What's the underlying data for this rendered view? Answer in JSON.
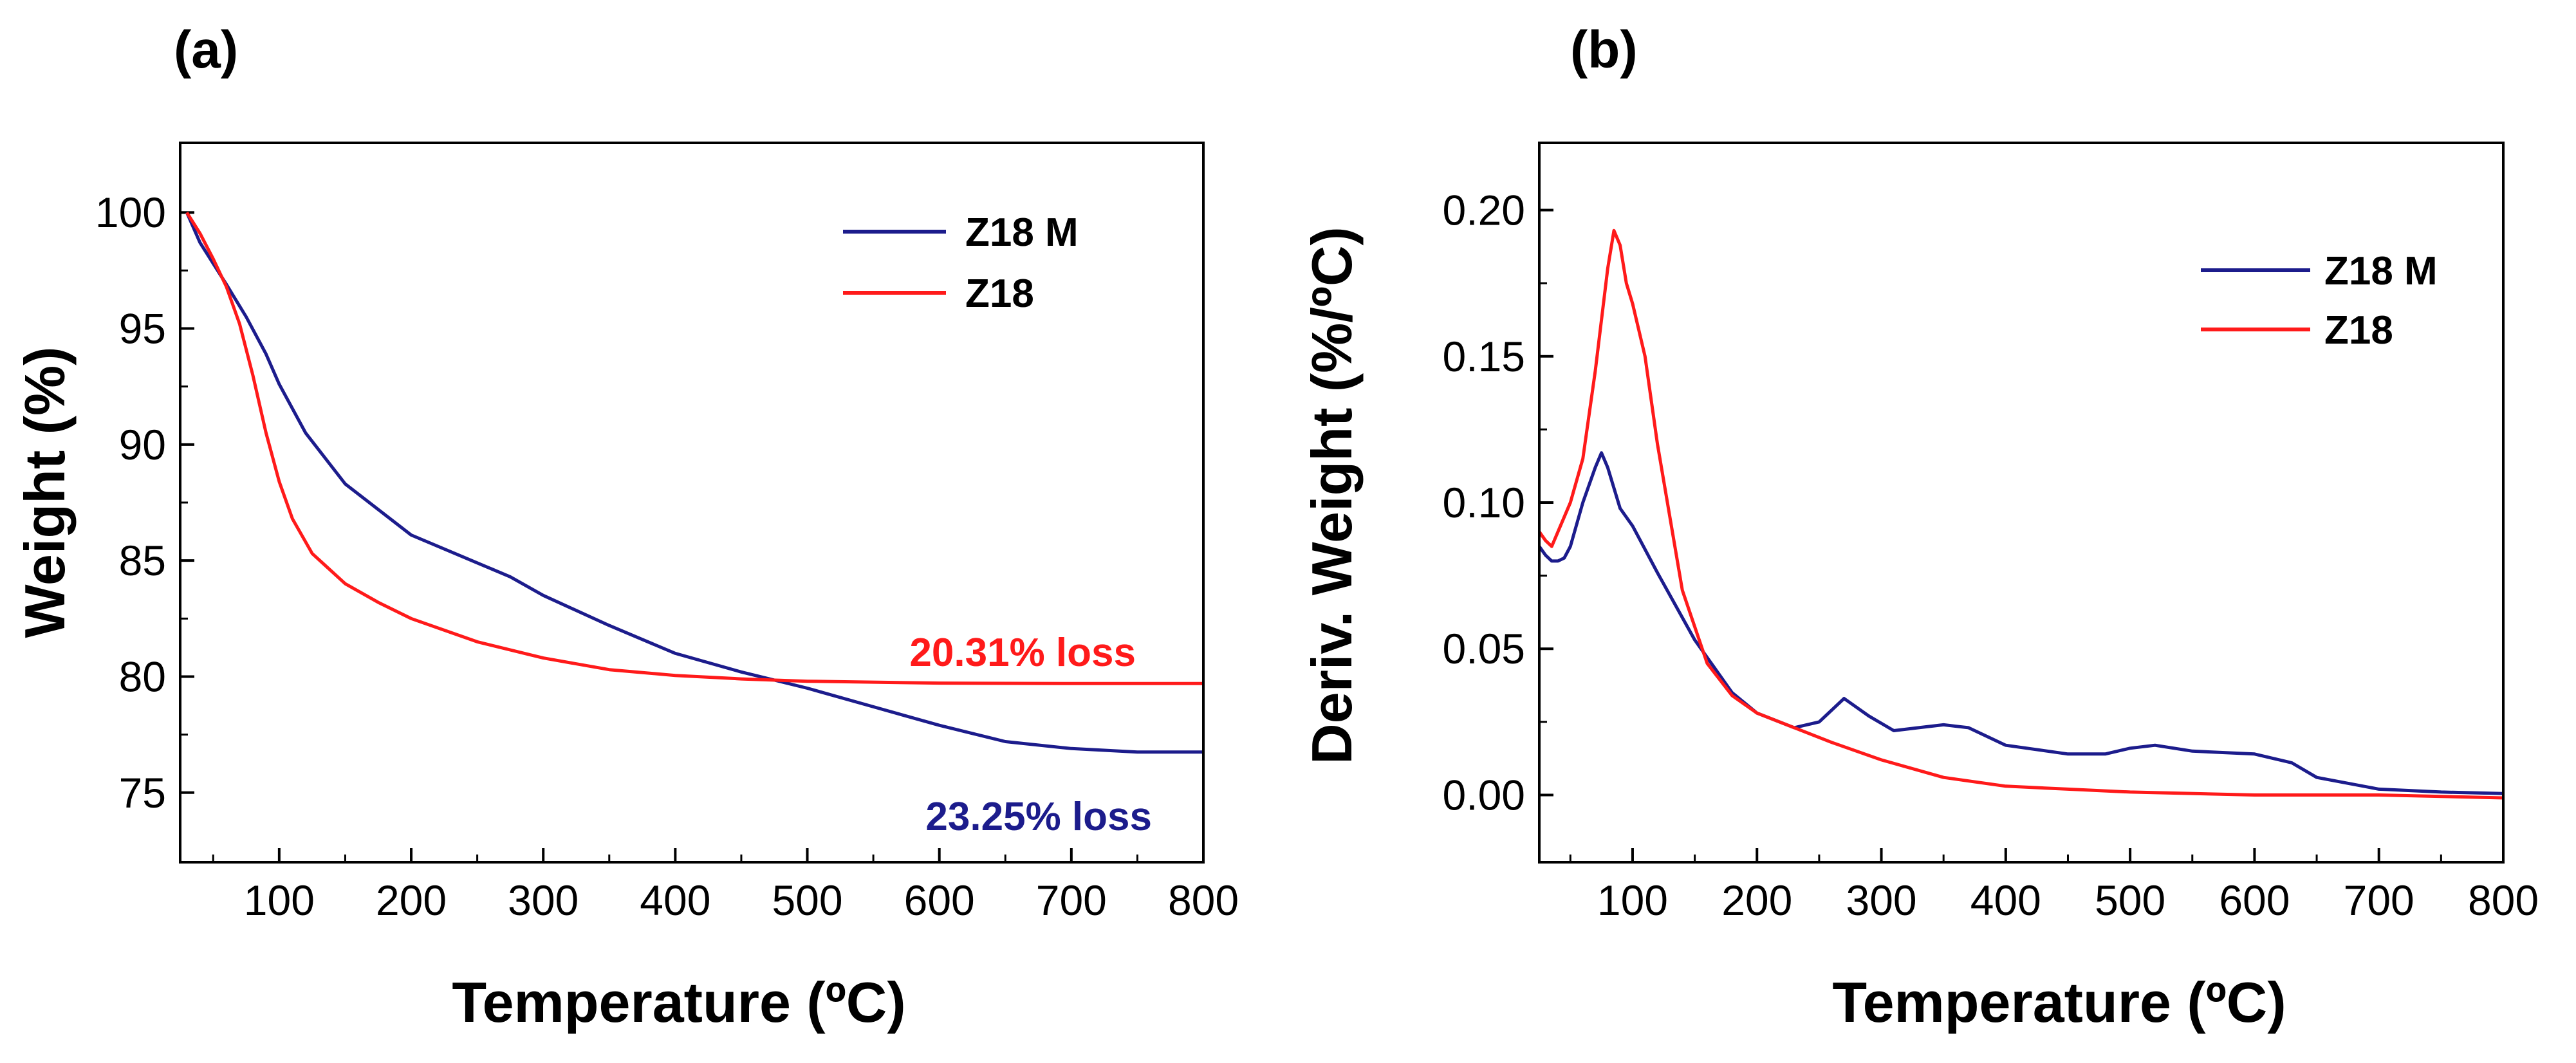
{
  "chart_data": [
    {
      "panel_label": "(a)",
      "type": "line",
      "xlabel": "Temperature (ºC)",
      "ylabel": "Weight (%)",
      "xlim": [
        25,
        800
      ],
      "ylim": [
        72,
        103
      ],
      "xticks": [
        100,
        200,
        300,
        400,
        500,
        600,
        700,
        800
      ],
      "xtick_labels": [
        "100",
        "200",
        "300",
        "400",
        "500",
        "600",
        "700",
        "800"
      ],
      "yticks": [
        75,
        80,
        85,
        90,
        95,
        100
      ],
      "ytick_labels": [
        "75",
        "80",
        "85",
        "90",
        "95",
        "100"
      ],
      "legend": {
        "position": "top-right",
        "entries": [
          "Z18 M",
          "Z18"
        ]
      },
      "series": [
        {
          "name": "Z18 M",
          "color": "#1c1c8c",
          "x": [
            30,
            40,
            50,
            60,
            75,
            90,
            100,
            120,
            150,
            200,
            250,
            275,
            300,
            350,
            400,
            450,
            500,
            550,
            600,
            650,
            700,
            750,
            800
          ],
          "y": [
            100,
            98.7,
            97.8,
            96.9,
            95.5,
            93.9,
            92.6,
            90.5,
            88.3,
            86.1,
            84.9,
            84.3,
            83.5,
            82.2,
            81.0,
            80.2,
            79.5,
            78.7,
            77.9,
            77.2,
            76.9,
            76.75,
            76.75
          ]
        },
        {
          "name": "Z18",
          "color": "#ff1a1a",
          "x": [
            30,
            40,
            50,
            60,
            70,
            80,
            90,
            100,
            110,
            125,
            150,
            175,
            200,
            250,
            300,
            350,
            400,
            450,
            500,
            600,
            700,
            800
          ],
          "y": [
            100,
            99.1,
            98.0,
            96.8,
            95.2,
            93.0,
            90.5,
            88.4,
            86.8,
            85.3,
            84.0,
            83.2,
            82.5,
            81.5,
            80.8,
            80.3,
            80.05,
            79.9,
            79.8,
            79.72,
            79.7,
            79.7
          ]
        }
      ],
      "annotations": [
        {
          "text": "20.31% loss",
          "color": "#ff1a1a",
          "x": 800,
          "y": 81.3
        },
        {
          "text": "23.25% loss",
          "color": "#1c1c8c",
          "x": 800,
          "y": 74.9
        }
      ]
    },
    {
      "panel_label": "(b)",
      "type": "line",
      "xlabel": "Temperature (ºC)",
      "ylabel": "Deriv. Weight (%/ºC)",
      "xlim": [
        25,
        800
      ],
      "ylim": [
        -0.023,
        0.223
      ],
      "xticks": [
        100,
        200,
        300,
        400,
        500,
        600,
        700,
        800
      ],
      "xtick_labels": [
        "100",
        "200",
        "300",
        "400",
        "500",
        "600",
        "700",
        "800"
      ],
      "yticks": [
        0.0,
        0.05,
        0.1,
        0.15,
        0.2
      ],
      "ytick_labels": [
        "0.00",
        "0.05",
        "0.10",
        "0.15",
        "0.20"
      ],
      "legend": {
        "position": "top-right",
        "entries": [
          "Z18 M",
          "Z18"
        ]
      },
      "series": [
        {
          "name": "Z18 M",
          "color": "#1c1c8c",
          "x": [
            25,
            30,
            35,
            40,
            45,
            50,
            60,
            70,
            75,
            80,
            90,
            100,
            120,
            150,
            180,
            200,
            230,
            250,
            270,
            290,
            310,
            330,
            350,
            370,
            400,
            450,
            480,
            500,
            520,
            550,
            600,
            630,
            650,
            700,
            750,
            800
          ],
          "y": [
            0.085,
            0.082,
            0.08,
            0.08,
            0.081,
            0.085,
            0.1,
            0.112,
            0.117,
            0.112,
            0.098,
            0.092,
            0.076,
            0.053,
            0.035,
            0.028,
            0.023,
            0.025,
            0.033,
            0.027,
            0.022,
            0.023,
            0.024,
            0.023,
            0.017,
            0.014,
            0.014,
            0.016,
            0.017,
            0.015,
            0.014,
            0.011,
            0.006,
            0.002,
            0.001,
            0.0005
          ]
        },
        {
          "name": "Z18",
          "color": "#ff1a1a",
          "x": [
            25,
            30,
            35,
            40,
            50,
            60,
            70,
            80,
            85,
            90,
            95,
            100,
            110,
            120,
            140,
            160,
            180,
            200,
            230,
            260,
            300,
            350,
            400,
            450,
            500,
            600,
            700,
            800
          ],
          "y": [
            0.09,
            0.087,
            0.085,
            0.09,
            0.1,
            0.115,
            0.145,
            0.18,
            0.193,
            0.188,
            0.175,
            0.168,
            0.15,
            0.12,
            0.07,
            0.045,
            0.034,
            0.028,
            0.023,
            0.018,
            0.012,
            0.006,
            0.003,
            0.002,
            0.001,
            0.0,
            0.0,
            -0.001
          ]
        }
      ]
    }
  ]
}
